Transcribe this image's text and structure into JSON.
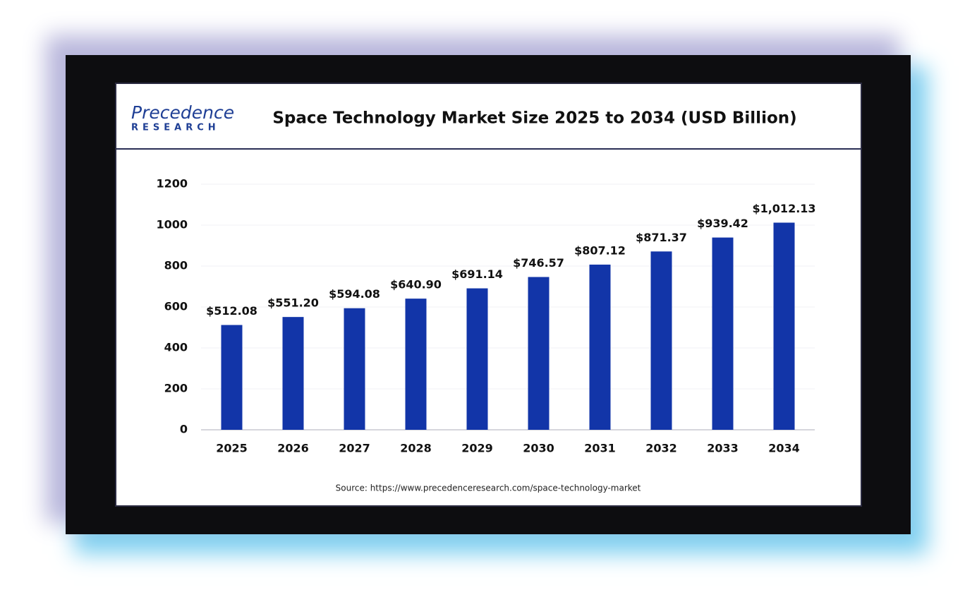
{
  "logo": {
    "name": "Precedence",
    "tagline": "RESEARCH"
  },
  "chart_data": {
    "type": "bar",
    "title": "Space Technology Market Size 2025 to 2034 (USD Billion)",
    "categories": [
      "2025",
      "2026",
      "2027",
      "2028",
      "2029",
      "2030",
      "2031",
      "2032",
      "2033",
      "2034"
    ],
    "values": [
      512.08,
      551.2,
      594.08,
      640.9,
      691.14,
      746.57,
      807.12,
      871.37,
      939.42,
      1012.13
    ],
    "value_labels": [
      "$512.08",
      "$551.20",
      "$594.08",
      "$640.90",
      "$691.14",
      "$746.57",
      "$807.12",
      "$871.37",
      "$939.42",
      "$1,012.13"
    ],
    "color": "#1235a8",
    "ylim": [
      0,
      1200
    ],
    "yticks": [
      0,
      200,
      400,
      600,
      800,
      1000,
      1200
    ],
    "grid": true,
    "source": "Source: https://www.precedenceresearch.com/space-technology-market"
  }
}
